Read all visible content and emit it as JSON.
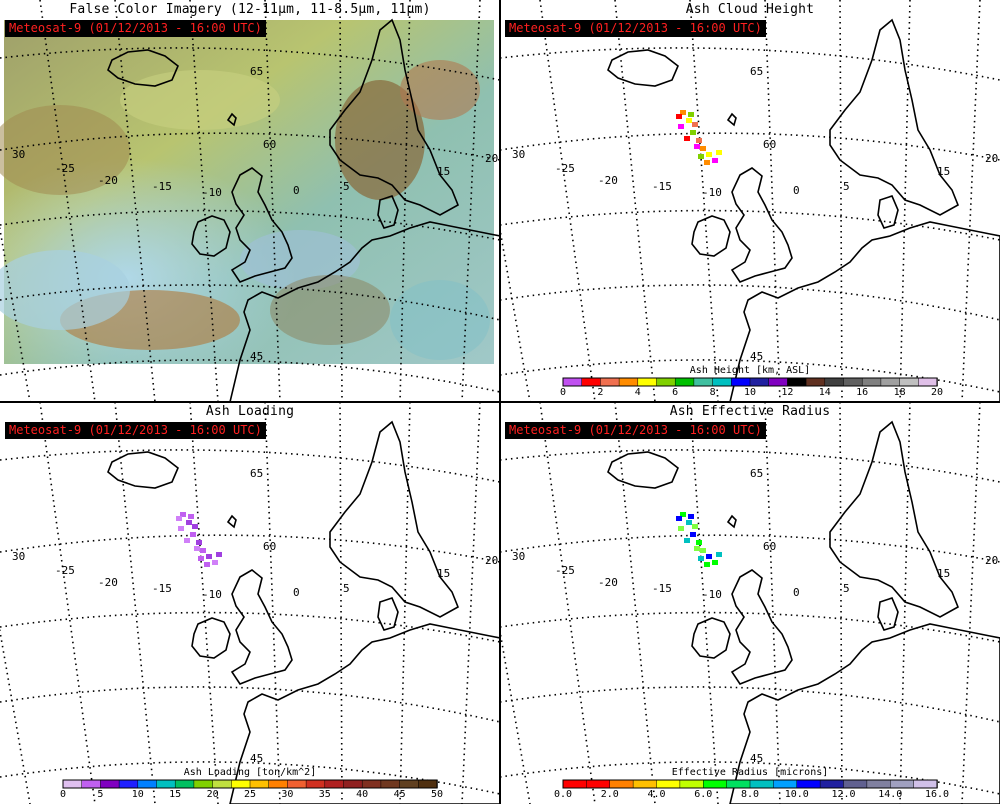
{
  "panels": [
    {
      "title": "False Color Imagery (12-11µm, 11-8.5µm, 11µm)",
      "timestamp": "Meteosat-9  (01/12/2013 - 16:00 UTC)",
      "lat_labels": [
        "65",
        "60",
        "45"
      ],
      "lon_labels": [
        "30",
        "-25",
        "-20",
        "-15",
        "-10",
        "0",
        "5",
        "15",
        "20"
      ]
    },
    {
      "title": "Ash Cloud Height",
      "timestamp": "Meteosat-9  (01/12/2013 - 16:00 UTC)",
      "lat_labels": [
        "65",
        "60",
        "45"
      ],
      "lon_labels": [
        "30",
        "-25",
        "-20",
        "-15",
        "-10",
        "0",
        "5",
        "15",
        "20"
      ],
      "colorbar": {
        "label": "Ash Height [km, ASL]",
        "ticks": [
          "0",
          "2",
          "4",
          "6",
          "8",
          "10",
          "12",
          "14",
          "16",
          "18",
          "20"
        ],
        "colors": [
          "#c050f0",
          "#ff0000",
          "#f07050",
          "#ff8c00",
          "#ffff00",
          "#80d000",
          "#00c000",
          "#40c0a0",
          "#00c0c0",
          "#0000ff",
          "#2020a0",
          "#8000c0",
          "#000000",
          "#603020",
          "#404040",
          "#606060",
          "#808080",
          "#a0a0a0",
          "#c0c0c0",
          "#e0c0e8"
        ]
      }
    },
    {
      "title": "Ash Loading",
      "timestamp": "Meteosat-9  (01/12/2013 - 16:00 UTC)",
      "lat_labels": [
        "65",
        "60",
        "45"
      ],
      "lon_labels": [
        "30",
        "-25",
        "-20",
        "-15",
        "-10",
        "0",
        "5",
        "15",
        "20"
      ],
      "colorbar": {
        "label": "Ash Loading [ton/km^2]",
        "ticks": [
          "0",
          "5",
          "10",
          "15",
          "20",
          "25",
          "30",
          "35",
          "40",
          "45",
          "50"
        ],
        "colors": [
          "#e0c0f0",
          "#c060f0",
          "#8000c0",
          "#2020ff",
          "#0080ff",
          "#00c0c0",
          "#00c060",
          "#80d000",
          "#c0e040",
          "#ffff00",
          "#ffc000",
          "#ff8000",
          "#f06030",
          "#d03020",
          "#b02020",
          "#902020",
          "#803020",
          "#703820",
          "#604020",
          "#503010"
        ]
      }
    },
    {
      "title": "Ash Effective Radius",
      "timestamp": "Meteosat-9  (01/12/2013 - 16:00 UTC)",
      "lat_labels": [
        "65",
        "60",
        "45"
      ],
      "lon_labels": [
        "30",
        "-25",
        "-20",
        "-15",
        "-10",
        "0",
        "5",
        "15",
        "20"
      ],
      "colorbar": {
        "label": "Effective Radius [microns]",
        "ticks": [
          "0.0",
          "2.0",
          "4.0",
          "6.0",
          "8.0",
          "10.0",
          "12.0",
          "14.0",
          "16.0"
        ],
        "colors": [
          "#ff0000",
          "#ff0000",
          "#ff8000",
          "#ffc000",
          "#ffff00",
          "#c0ff00",
          "#00ff00",
          "#00e060",
          "#00c0c0",
          "#00a0ff",
          "#0000ff",
          "#2020a0",
          "#606090",
          "#8080a0",
          "#a0a0c0",
          "#d0c0e8"
        ]
      }
    }
  ],
  "colors": {
    "stamp_bg": "#000000",
    "stamp_text": "#ff2020",
    "coastline": "#000000"
  }
}
